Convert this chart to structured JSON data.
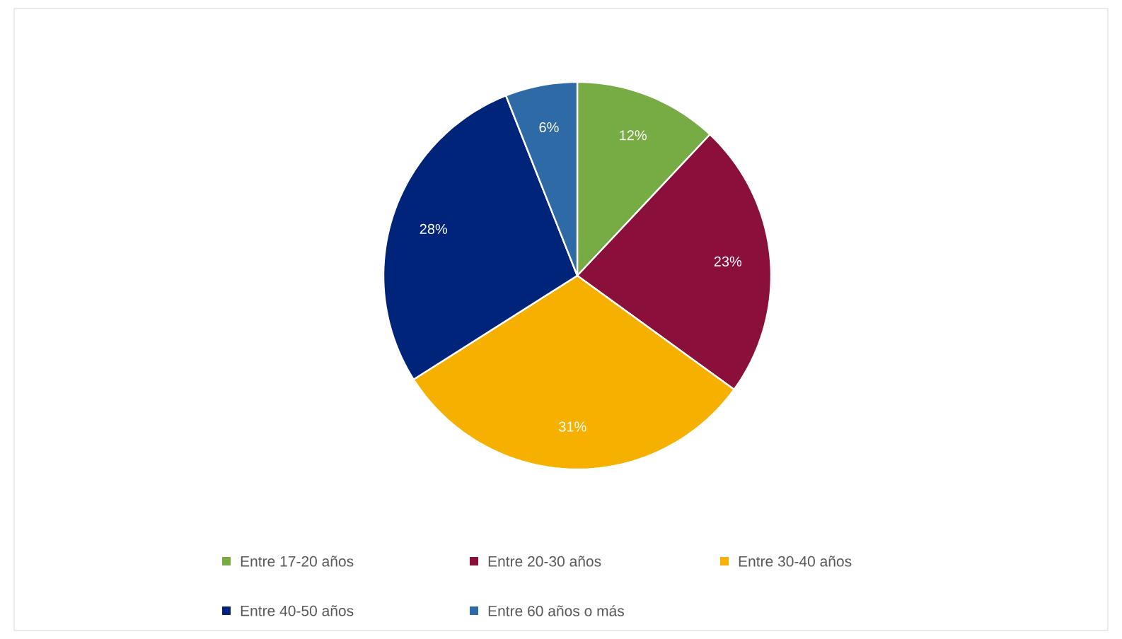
{
  "chart_data": {
    "type": "pie",
    "categories": [
      "Entre 17-20 años",
      "Entre 20-30 años",
      "Entre 30-40 años",
      "Entre 40-50 años",
      "Entre 60 años o más"
    ],
    "values": [
      12,
      23,
      31,
      28,
      6
    ],
    "colors": [
      "#77ab43",
      "#8a0f3a",
      "#f5b000",
      "#00247a",
      "#2e6aa6"
    ],
    "value_labels": [
      "12%",
      "23%",
      "31%",
      "28%",
      "6%"
    ],
    "legend": "bottom"
  }
}
